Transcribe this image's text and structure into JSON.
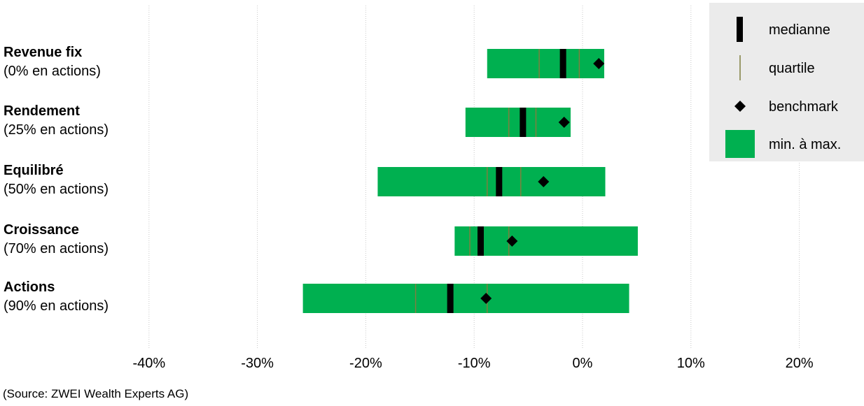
{
  "chart_data": {
    "type": "range-bar",
    "orientation": "horizontal",
    "xlim": [
      -42,
      24
    ],
    "ticks": [
      -40,
      -30,
      -20,
      -10,
      0,
      10,
      20
    ],
    "tick_labels": [
      "-40%",
      "-30%",
      "-20%",
      "-10%",
      "0%",
      "10%",
      "20%"
    ],
    "grid": true,
    "legend_position": "top-right",
    "colors": {
      "range": "#00b050",
      "median": "#000000",
      "quartile": "#7f7f3f",
      "benchmark": "#000000",
      "legend_bg": "#ebebeb",
      "grid": "#c8c8c8"
    },
    "legend": [
      {
        "key": "median",
        "label": "medianne"
      },
      {
        "key": "quartile",
        "label": "quartile"
      },
      {
        "key": "benchmark",
        "label": "benchmark"
      },
      {
        "key": "range",
        "label": "min. à max."
      }
    ],
    "categories": [
      {
        "name": "Revenue fix",
        "sub": "(0% en actions)",
        "min": -8.8,
        "max": 2.0,
        "q1": -4.0,
        "median": -1.8,
        "q3": -0.3,
        "benchmark": 1.5
      },
      {
        "name": "Rendement",
        "sub": "(25% en actions)",
        "min": -10.8,
        "max": -1.1,
        "q1": -6.8,
        "median": -5.5,
        "q3": -4.3,
        "benchmark": -1.7
      },
      {
        "name": "Equilibré",
        "sub": "(50% en actions)",
        "min": -18.9,
        "max": 2.1,
        "q1": -8.8,
        "median": -7.7,
        "q3": -5.7,
        "benchmark": -3.6
      },
      {
        "name": "Croissance",
        "sub": "(70% en actions)",
        "min": -11.8,
        "max": 5.1,
        "q1": -10.4,
        "median": -9.4,
        "q3": -6.8,
        "benchmark": -6.5
      },
      {
        "name": "Actions",
        "sub": "(90% en actions)",
        "min": -25.8,
        "max": 4.3,
        "q1": -15.4,
        "median": -12.2,
        "q3": -8.8,
        "benchmark": -8.9
      }
    ]
  },
  "source": "(Source: ZWEI Wealth Experts AG)"
}
